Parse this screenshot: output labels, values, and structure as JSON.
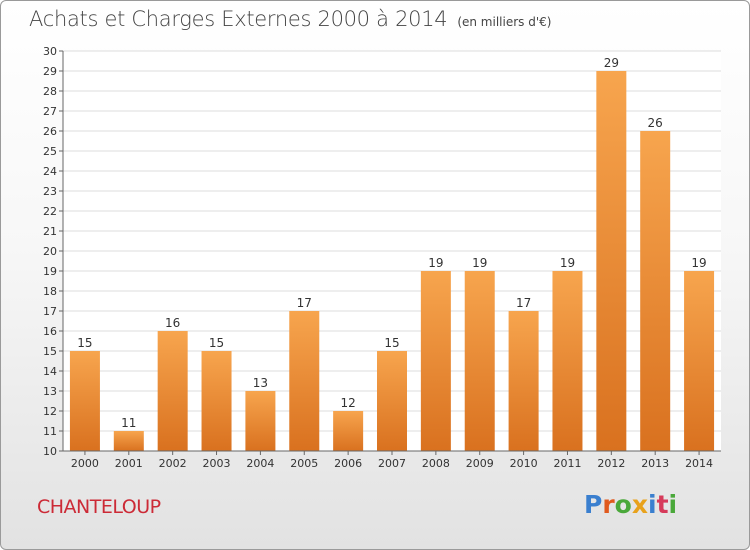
{
  "header": {
    "title": "Achats et Charges Externes 2000 à 2014",
    "unit": "(en milliers d'€)"
  },
  "footer": {
    "commune": "CHANTELOUP",
    "logo_letters": [
      "P",
      "r",
      "o",
      "x",
      "i",
      "t",
      "i"
    ],
    "logo_colors": [
      "#3a7fcf",
      "#e05a1e",
      "#4aa83a",
      "#e8a21c",
      "#3a7fcf",
      "#d63a5a",
      "#4aa83a"
    ]
  },
  "colors": {
    "bar_top": "#f7a54e",
    "bar_bottom": "#d9711f",
    "grid": "#dddddd",
    "axis": "#666666",
    "text": "#333333"
  },
  "chart_data": {
    "type": "bar",
    "categories": [
      "2000",
      "2001",
      "2002",
      "2003",
      "2004",
      "2005",
      "2006",
      "2007",
      "2008",
      "2009",
      "2010",
      "2011",
      "2012",
      "2013",
      "2014"
    ],
    "values": [
      15,
      11,
      16,
      15,
      13,
      17,
      12,
      15,
      19,
      19,
      17,
      19,
      29,
      26,
      19
    ],
    "ylim": [
      10,
      30
    ],
    "yticks": [
      10,
      11,
      12,
      13,
      14,
      15,
      16,
      17,
      18,
      19,
      20,
      21,
      22,
      23,
      24,
      25,
      26,
      27,
      28,
      29,
      30
    ],
    "grid": true,
    "data_labels": true
  }
}
